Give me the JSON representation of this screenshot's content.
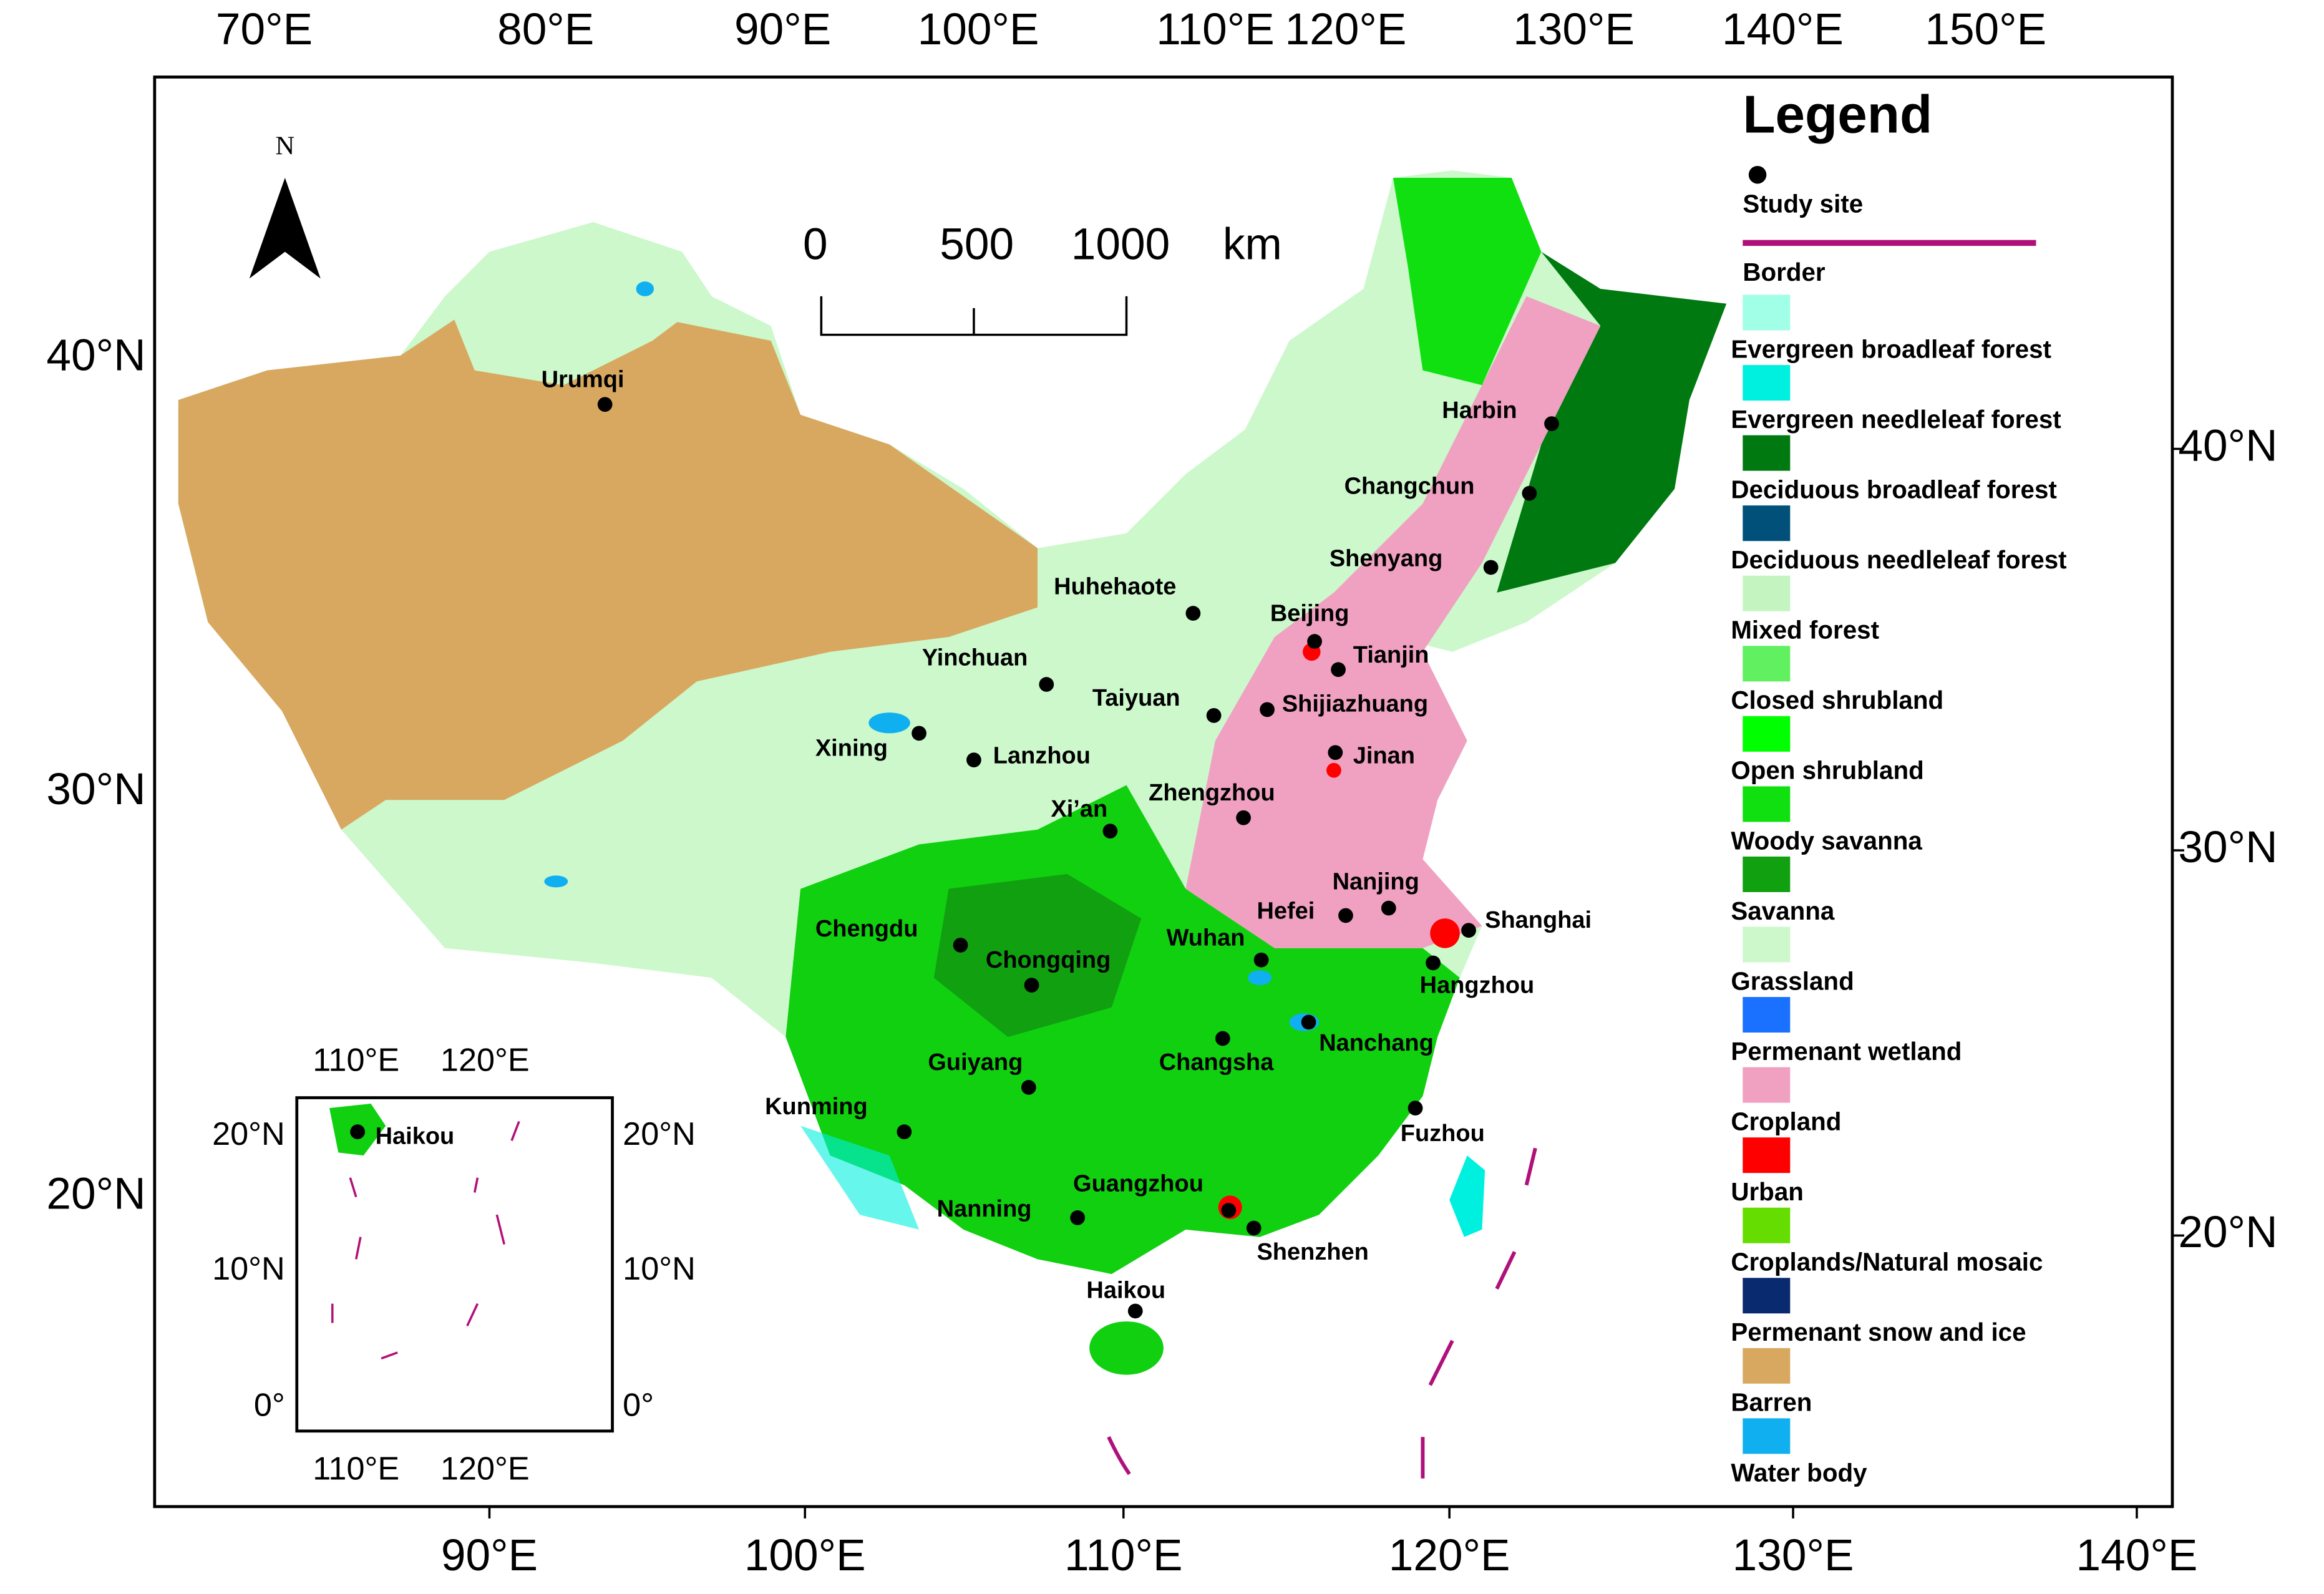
{
  "top_axis": [
    "70°E",
    "80°E",
    "90°E",
    "100°E",
    "110°E",
    "120°E",
    "130°E",
    "140°E",
    "150°E"
  ],
  "bottom_axis": [
    "90°E",
    "100°E",
    "110°E",
    "120°E",
    "130°E",
    "140°E"
  ],
  "left_axis": [
    "40°N",
    "30°N",
    "20°N"
  ],
  "right_axis": [
    "40°N",
    "30°N",
    "20°N"
  ],
  "north": "N",
  "scale_bar": {
    "ticks": [
      0,
      500,
      1000
    ],
    "unit": "km"
  },
  "legend": {
    "title": "Legend",
    "items": [
      {
        "label": "Study site"
      },
      {
        "label": "Border"
      },
      {
        "label": "Evergreen broadleaf forest",
        "color": "#a0ffe6"
      },
      {
        "label": "Evergreen needleleaf forest",
        "color": "#00f0e0"
      },
      {
        "label": "Deciduous broadleaf forest",
        "color": "#007a10"
      },
      {
        "label": "Deciduous needleleaf forest",
        "color": "#00507a"
      },
      {
        "label": "Mixed forest",
        "color": "#c4f5c0"
      },
      {
        "label": "Closed shrubland",
        "color": "#60f060"
      },
      {
        "label": "Open shrubland",
        "color": "#00ff00"
      },
      {
        "label": "Woody savanna",
        "color": "#10e010"
      },
      {
        "label": "Savanna",
        "color": "#10a010"
      },
      {
        "label": "Grassland",
        "color": "#ccf8cc"
      },
      {
        "label": "Permenant wetland",
        "color": "#1a70ff"
      },
      {
        "label": "Cropland",
        "color": "#f0a0c0"
      },
      {
        "label": "Urban",
        "color": "#ff0000"
      },
      {
        "label": "Croplands/Natural mosaic",
        "color": "#66dd00"
      },
      {
        "label": "Permenant snow and ice",
        "color": "#0a2a70"
      },
      {
        "label": "Barren",
        "color": "#d8a860"
      },
      {
        "label": "Water body",
        "color": "#10b0f0"
      }
    ]
  },
  "cities": [
    "Urumqi",
    "Harbin",
    "Changchun",
    "Shenyang",
    "Huhehaote",
    "Beijing",
    "Tianjin",
    "Yinchuan",
    "Taiyuan",
    "Shijiazhuang",
    "Xining",
    "Lanzhou",
    "Jinan",
    "Zhengzhou",
    "Xi’an",
    "Nanjing",
    "Hefei",
    "Shanghai",
    "Chengdu",
    "Wuhan",
    "Chongqing",
    "Hangzhou",
    "Nanchang",
    "Changsha",
    "Guiyang",
    "Fuzhou",
    "Kunming",
    "Guangzhou",
    "Nanning",
    "Shenzhen",
    "Haikou"
  ],
  "inset": {
    "top_axis": [
      "110°E",
      "120°E"
    ],
    "bottom_axis": [
      "110°E",
      "120°E"
    ],
    "left_axis": [
      "20°N",
      "10°N",
      "0°"
    ],
    "right_axis": [
      "20°N",
      "10°N",
      "0°"
    ],
    "city": "Haikou"
  }
}
